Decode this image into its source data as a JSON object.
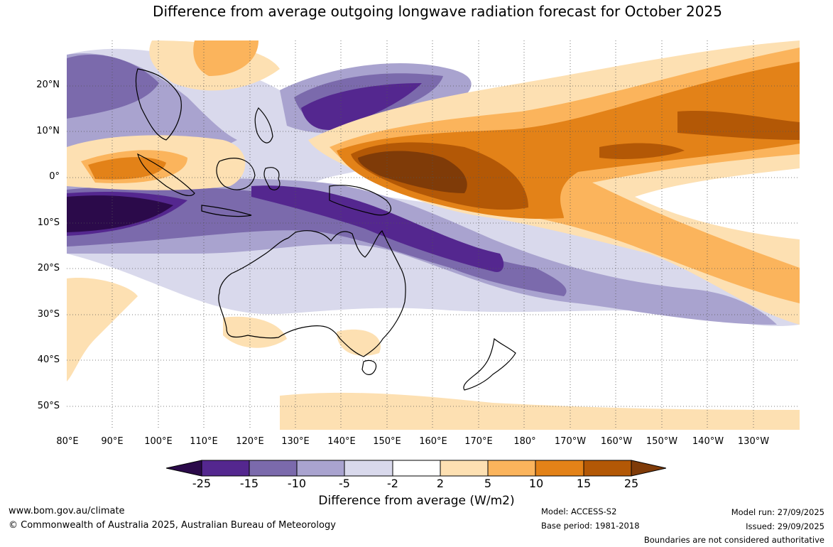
{
  "title": "Difference from average outgoing longwave radiation forecast for October 2025",
  "map": {
    "lat_labels": [
      "20°N",
      "10°N",
      "0°",
      "10°S",
      "20°S",
      "30°S",
      "40°S",
      "50°S"
    ],
    "lon_labels": [
      "80°E",
      "90°E",
      "100°E",
      "110°E",
      "120°E",
      "130°E",
      "140°E",
      "150°E",
      "160°E",
      "170°E",
      "180°",
      "170°W",
      "160°W",
      "150°W",
      "140°W",
      "130°W"
    ],
    "regions": [
      "australia",
      "new-zealand",
      "new-guinea",
      "borneo",
      "sumatra",
      "sulawesi",
      "philippines",
      "indochina",
      "java",
      "tasmania"
    ]
  },
  "colorbar": {
    "ticks": [
      "-25",
      "-15",
      "-10",
      "-5",
      "-2",
      "2",
      "5",
      "10",
      "15",
      "25"
    ],
    "colors": [
      "#2b0a4a",
      "#54278f",
      "#7b6aac",
      "#a9a3cf",
      "#d9d9ec",
      "#ffffff",
      "#fde0b2",
      "#fbb45c",
      "#e38218",
      "#b35806",
      "#7f3b08"
    ],
    "title": "Difference from average (W/m2)"
  },
  "footer": {
    "url": "www.bom.gov.au/climate",
    "copyright": "© Commonwealth of Australia 2025, Australian Bureau of Meteorology",
    "model": "Model: ACCESS-S2",
    "base_period": "Base period: 1981-2018",
    "model_run": "Model run: 27/09/2025",
    "issued": "Issued: 29/09/2025",
    "disclaimer": "Boundaries are not considered authoritative"
  }
}
